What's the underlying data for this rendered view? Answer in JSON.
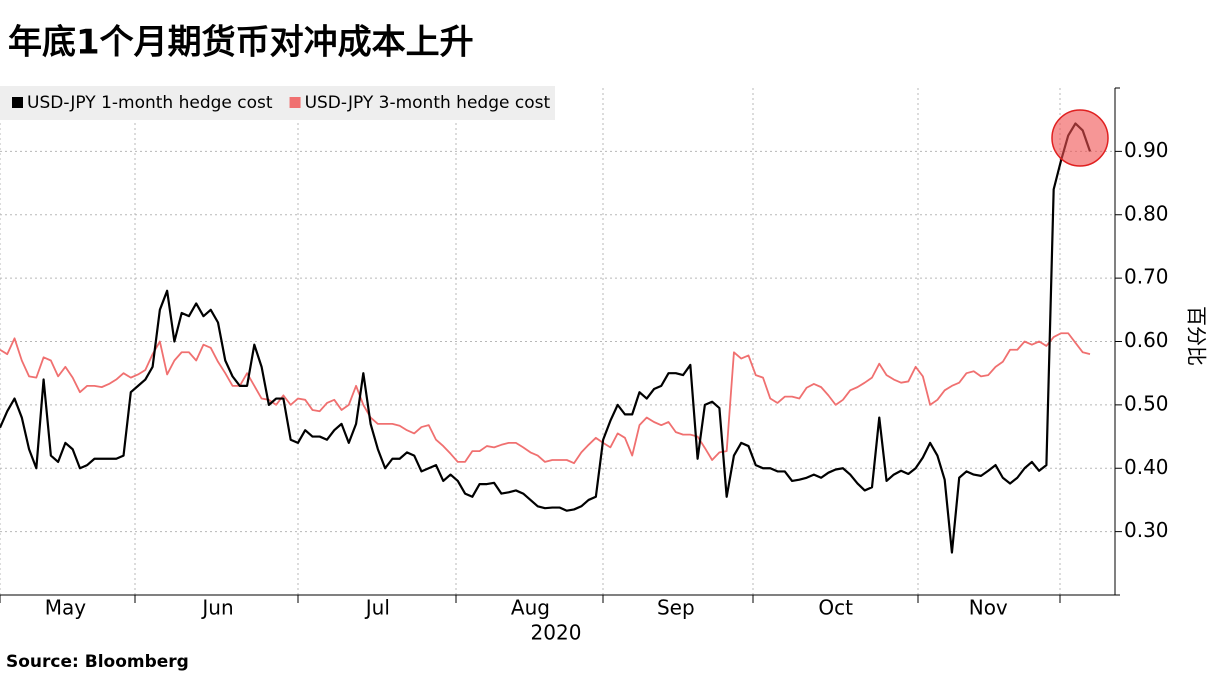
{
  "chart_data": {
    "type": "line",
    "title": "年底1个月期货币对冲成本上升",
    "xlabel": "2020",
    "ylabel": "百分比",
    "source": "Source:  Bloomberg",
    "legend": "top-left",
    "grid": true,
    "ylim": [
      0.2,
      1.0
    ],
    "yticks": [
      {
        "value": 0.3,
        "label": "0.30"
      },
      {
        "value": 0.4,
        "label": "0.40"
      },
      {
        "value": 0.5,
        "label": "0.50"
      },
      {
        "value": 0.6,
        "label": "0.60"
      },
      {
        "value": 0.7,
        "label": "0.70"
      },
      {
        "value": 0.8,
        "label": "0.80"
      },
      {
        "value": 0.9,
        "label": "0.90"
      }
    ],
    "categories": [
      null,
      null,
      null,
      null,
      null,
      null,
      null,
      null,
      null,
      "May",
      null,
      null,
      null,
      null,
      null,
      null,
      null,
      null,
      null,
      null,
      null,
      null,
      null,
      null,
      null,
      null,
      null,
      null,
      null,
      null,
      "Jun",
      null,
      null,
      null,
      null,
      null,
      null,
      null,
      null,
      null,
      null,
      null,
      null,
      null,
      null,
      null,
      null,
      null,
      null,
      null,
      null,
      null,
      "Jul",
      null,
      null,
      null,
      null,
      null,
      null,
      null,
      null,
      null,
      null,
      null,
      null,
      null,
      null,
      null,
      null,
      null,
      null,
      null,
      null,
      "Aug",
      null,
      null,
      null,
      null,
      null,
      null,
      null,
      null,
      null,
      null,
      null,
      null,
      null,
      null,
      null,
      null,
      null,
      null,
      null,
      "Sep",
      null,
      null,
      null,
      null,
      null,
      null,
      null,
      null,
      null,
      null,
      null,
      null,
      null,
      null,
      null,
      null,
      null,
      null,
      null,
      null,
      null,
      "Oct",
      null,
      null,
      null,
      null,
      null,
      null,
      null,
      null,
      null,
      null,
      null,
      null,
      null,
      null,
      null,
      null,
      null,
      null,
      null,
      null,
      "Nov",
      null,
      null,
      null,
      null,
      null,
      null,
      null,
      null,
      null,
      null,
      null,
      null,
      null,
      null
    ],
    "series": [
      {
        "name": "USD-JPY 1-month hedge cost",
        "color": "#000000",
        "values": [
          0.464,
          0.49,
          0.51,
          0.48,
          0.43,
          0.4,
          0.54,
          0.42,
          0.41,
          0.44,
          0.43,
          0.4,
          0.405,
          0.415,
          0.415,
          0.415,
          0.415,
          0.42,
          0.52,
          0.53,
          0.54,
          0.56,
          0.65,
          0.68,
          0.6,
          0.645,
          0.64,
          0.66,
          0.64,
          0.65,
          0.63,
          0.57,
          0.545,
          0.53,
          0.53,
          0.595,
          0.56,
          0.5,
          0.51,
          0.51,
          0.445,
          0.44,
          0.46,
          0.45,
          0.45,
          0.445,
          0.46,
          0.47,
          0.44,
          0.47,
          0.55,
          0.47,
          0.43,
          0.4,
          0.415,
          0.415,
          0.425,
          0.42,
          0.395,
          0.4,
          0.405,
          0.38,
          0.39,
          0.38,
          0.36,
          0.355,
          0.375,
          0.375,
          0.377,
          0.36,
          0.362,
          0.365,
          0.36,
          0.35,
          0.34,
          0.337,
          0.338,
          0.338,
          0.333,
          0.335,
          0.34,
          0.35,
          0.355,
          0.445,
          0.475,
          0.5,
          0.485,
          0.485,
          0.52,
          0.51,
          0.525,
          0.53,
          0.55,
          0.55,
          0.547,
          0.563,
          0.415,
          0.5,
          0.505,
          0.495,
          0.355,
          0.42,
          0.44,
          0.435,
          0.405,
          0.4,
          0.4,
          0.395,
          0.395,
          0.38,
          0.382,
          0.385,
          0.39,
          0.385,
          0.393,
          0.398,
          0.4,
          0.39,
          0.376,
          0.365,
          0.37,
          0.48,
          0.38,
          0.39,
          0.396,
          0.391,
          0.4,
          0.417,
          0.44,
          0.42,
          0.382,
          0.267,
          0.385,
          0.395,
          0.39,
          0.388,
          0.396,
          0.405,
          0.385,
          0.376,
          0.385,
          0.4,
          0.41,
          0.396,
          0.405,
          0.84,
          0.885,
          0.925,
          0.944,
          0.933,
          0.9
        ]
      },
      {
        "name": "USD-JPY 3-month hedge cost",
        "color": "#f07070",
        "values": [
          0.587,
          0.58,
          0.605,
          0.57,
          0.545,
          0.543,
          0.575,
          0.57,
          0.545,
          0.56,
          0.543,
          0.52,
          0.53,
          0.53,
          0.528,
          0.533,
          0.54,
          0.55,
          0.543,
          0.548,
          0.555,
          0.58,
          0.6,
          0.548,
          0.57,
          0.583,
          0.583,
          0.57,
          0.595,
          0.59,
          0.568,
          0.55,
          0.53,
          0.53,
          0.55,
          0.53,
          0.51,
          0.508,
          0.5,
          0.515,
          0.5,
          0.51,
          0.508,
          0.492,
          0.49,
          0.503,
          0.508,
          0.492,
          0.5,
          0.53,
          0.5,
          0.48,
          0.47,
          0.47,
          0.47,
          0.467,
          0.46,
          0.455,
          0.465,
          0.468,
          0.445,
          0.435,
          0.423,
          0.41,
          0.41,
          0.427,
          0.427,
          0.435,
          0.433,
          0.437,
          0.44,
          0.44,
          0.433,
          0.425,
          0.42,
          0.41,
          0.413,
          0.413,
          0.413,
          0.408,
          0.425,
          0.437,
          0.448,
          0.44,
          0.433,
          0.455,
          0.448,
          0.42,
          0.468,
          0.48,
          0.473,
          0.468,
          0.473,
          0.457,
          0.453,
          0.453,
          0.45,
          0.432,
          0.413,
          0.425,
          0.427,
          0.583,
          0.573,
          0.578,
          0.547,
          0.543,
          0.51,
          0.503,
          0.513,
          0.513,
          0.51,
          0.527,
          0.533,
          0.528,
          0.515,
          0.5,
          0.508,
          0.523,
          0.528,
          0.535,
          0.543,
          0.565,
          0.547,
          0.54,
          0.535,
          0.537,
          0.56,
          0.545,
          0.5,
          0.508,
          0.523,
          0.53,
          0.535,
          0.55,
          0.553,
          0.545,
          0.547,
          0.56,
          0.568,
          0.587,
          0.587,
          0.6,
          0.595,
          0.6,
          0.593,
          0.607,
          0.613,
          0.613,
          0.598,
          0.583,
          0.58
        ]
      }
    ]
  }
}
